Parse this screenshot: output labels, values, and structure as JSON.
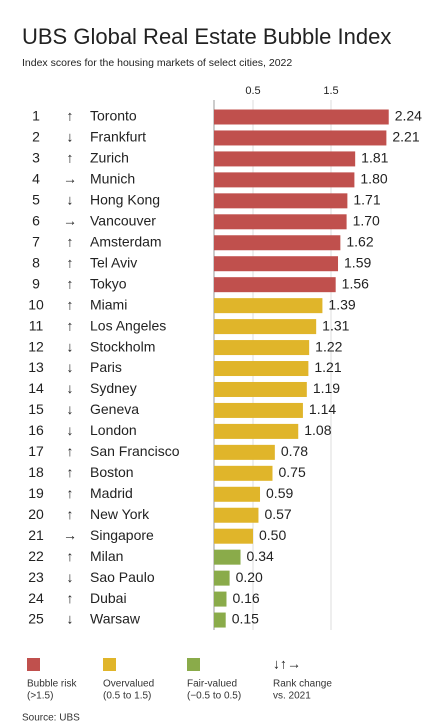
{
  "chart_data": {
    "type": "bar",
    "orientation": "horizontal",
    "title": "UBS Global Real Estate Bubble Index",
    "subtitle": "Index scores for the housing markets of select cities, 2022",
    "ranks": [
      1,
      2,
      3,
      4,
      5,
      6,
      7,
      8,
      9,
      10,
      11,
      12,
      13,
      14,
      15,
      16,
      17,
      18,
      19,
      20,
      21,
      22,
      23,
      24,
      25
    ],
    "rank_change": [
      "↑",
      "↓",
      "↑",
      "→",
      "↓",
      "→",
      "↑",
      "↑",
      "↑",
      "↑",
      "↑",
      "↓",
      "↓",
      "↓",
      "↓",
      "↓",
      "↑",
      "↑",
      "↑",
      "↑",
      "→",
      "↑",
      "↓",
      "↑",
      "↓"
    ],
    "categories": [
      "Toronto",
      "Frankfurt",
      "Zurich",
      "Munich",
      "Hong Kong",
      "Vancouver",
      "Amsterdam",
      "Tel Aviv",
      "Tokyo",
      "Miami",
      "Los Angeles",
      "Stockholm",
      "Paris",
      "Sydney",
      "Geneva",
      "London",
      "San Francisco",
      "Boston",
      "Madrid",
      "New York",
      "Singapore",
      "Milan",
      "Sao Paulo",
      "Dubai",
      "Warsaw"
    ],
    "values": [
      2.24,
      2.21,
      1.81,
      1.8,
      1.71,
      1.7,
      1.62,
      1.59,
      1.56,
      1.39,
      1.31,
      1.22,
      1.21,
      1.19,
      1.14,
      1.08,
      0.78,
      0.75,
      0.59,
      0.57,
      0.5,
      0.34,
      0.2,
      0.16,
      0.15
    ],
    "value_labels": [
      "2.24",
      "2.21",
      "1.81",
      "1.80",
      "1.71",
      "1.70",
      "1.62",
      "1.59",
      "1.56",
      "1.39",
      "1.31",
      "1.22",
      "1.21",
      "1.19",
      "1.14",
      "1.08",
      "0.78",
      "0.75",
      "0.59",
      "0.57",
      "0.50",
      "0.34",
      "0.20",
      "0.16",
      "0.15"
    ],
    "colors": [
      "#c0504d",
      "#c0504d",
      "#c0504d",
      "#c0504d",
      "#c0504d",
      "#c0504d",
      "#c0504d",
      "#c0504d",
      "#c0504d",
      "#e0b52a",
      "#e0b52a",
      "#e0b52a",
      "#e0b52a",
      "#e0b52a",
      "#e0b52a",
      "#e0b52a",
      "#e0b52a",
      "#e0b52a",
      "#e0b52a",
      "#e0b52a",
      "#e0b52a",
      "#8aab4a",
      "#8aab4a",
      "#8aab4a",
      "#8aab4a"
    ],
    "xlim": [
      0,
      2.5
    ],
    "xticks": [
      0.5,
      1.5
    ],
    "grid": true,
    "legend": [
      {
        "label": [
          "Bubble risk",
          "(>1.5)"
        ],
        "color": "#c0504d"
      },
      {
        "label": [
          "Overvalued",
          "(0.5 to 1.5)"
        ],
        "color": "#e0b52a"
      },
      {
        "label": [
          "Fair-valued",
          "(−0.5 to 0.5)"
        ],
        "color": "#8aab4a"
      }
    ],
    "rank_legend": {
      "symbols": "↓↑→",
      "label": [
        "Rank change",
        "vs. 2021"
      ]
    },
    "source": "Source: UBS"
  }
}
